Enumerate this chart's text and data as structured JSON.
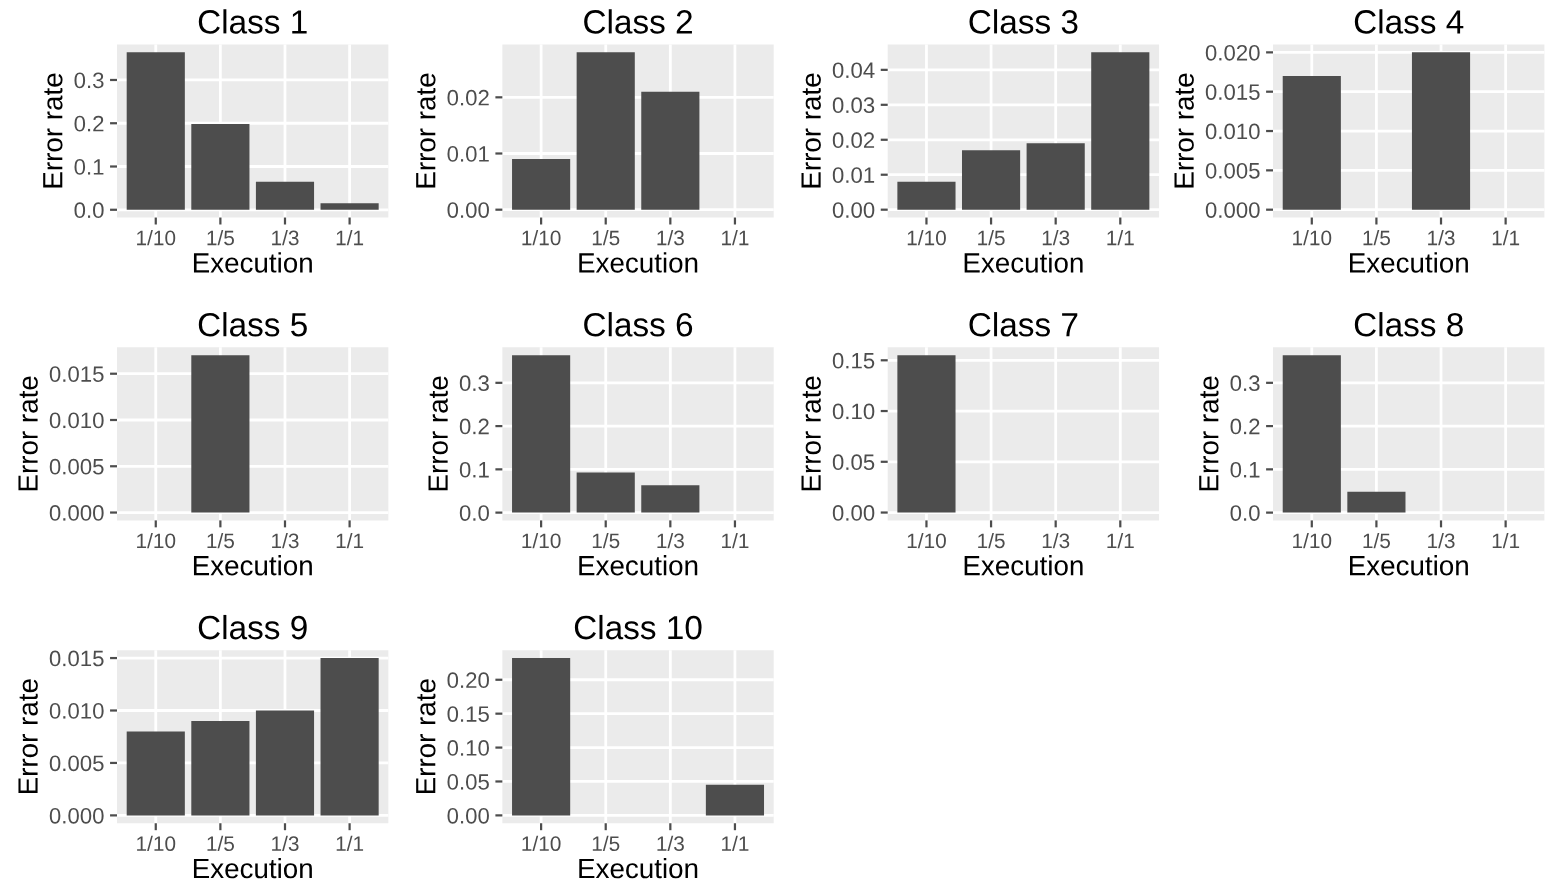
{
  "chart_data": [
    {
      "type": "bar",
      "title": "Class 1",
      "xlabel": "Execution",
      "ylabel": "Error rate",
      "categories": [
        "1/10",
        "1/5",
        "1/3",
        "1/1"
      ],
      "values": [
        0.364,
        0.198,
        0.065,
        0.015
      ],
      "color": "#4d4d4d",
      "ylim": [
        -0.018,
        0.382
      ],
      "yticks": [
        {
          "value": 0,
          "label": "0.0"
        },
        0.1,
        0.2,
        0.3
      ],
      "grid": true
    },
    {
      "type": "bar",
      "title": "Class 2",
      "xlabel": "Execution",
      "ylabel": "Error rate",
      "categories": [
        "1/10",
        "1/5",
        "1/3",
        "1/1"
      ],
      "values": [
        0.009,
        0.028,
        0.021,
        0
      ],
      "color": "#4d4d4d",
      "ylim": [
        -0.0014,
        0.0294
      ],
      "yticks": [
        {
          "value": 0,
          "label": "0.00"
        },
        0.01,
        0.02
      ],
      "grid": true
    },
    {
      "type": "bar",
      "title": "Class 3",
      "xlabel": "Execution",
      "ylabel": "Error rate",
      "categories": [
        "1/10",
        "1/5",
        "1/3",
        "1/1"
      ],
      "values": [
        0.008,
        0.017,
        0.019,
        0.045
      ],
      "color": "#4d4d4d",
      "ylim": [
        -0.00225,
        0.04725
      ],
      "yticks": [
        {
          "value": 0,
          "label": "0.00"
        },
        0.01,
        0.02,
        0.03,
        0.04
      ],
      "grid": true
    },
    {
      "type": "bar",
      "title": "Class 4",
      "xlabel": "Execution",
      "ylabel": "Error rate",
      "categories": [
        "1/10",
        "1/5",
        "1/3",
        "1/1"
      ],
      "values": [
        0.017,
        0,
        0.02,
        0
      ],
      "color": "#4d4d4d",
      "ylim": [
        -0.001,
        0.021
      ],
      "yticks": [
        {
          "value": 0,
          "label": "0.000"
        },
        0.005,
        {
          "value": 0.01,
          "label": "0.010"
        },
        0.015,
        {
          "value": 0.02,
          "label": "0.020"
        }
      ],
      "grid": true
    },
    {
      "type": "bar",
      "title": "Class 5",
      "xlabel": "Execution",
      "ylabel": "Error rate",
      "categories": [
        "1/10",
        "1/5",
        "1/3",
        "1/1"
      ],
      "values": [
        0,
        0.017,
        0,
        0
      ],
      "color": "#4d4d4d",
      "ylim": [
        -0.00085,
        0.01785
      ],
      "yticks": [
        {
          "value": 0,
          "label": "0.000"
        },
        0.005,
        {
          "value": 0.01,
          "label": "0.010"
        },
        0.015
      ],
      "grid": true
    },
    {
      "type": "bar",
      "title": "Class 6",
      "xlabel": "Execution",
      "ylabel": "Error rate",
      "categories": [
        "1/10",
        "1/5",
        "1/3",
        "1/1"
      ],
      "values": [
        0.364,
        0.093,
        0.063,
        0
      ],
      "color": "#4d4d4d",
      "ylim": [
        -0.018,
        0.382
      ],
      "yticks": [
        {
          "value": 0,
          "label": "0.0"
        },
        0.1,
        0.2,
        0.3
      ],
      "grid": true
    },
    {
      "type": "bar",
      "title": "Class 7",
      "xlabel": "Execution",
      "ylabel": "Error rate",
      "categories": [
        "1/10",
        "1/5",
        "1/3",
        "1/1"
      ],
      "values": [
        0.155,
        0,
        0,
        0
      ],
      "color": "#4d4d4d",
      "ylim": [
        -0.00775,
        0.16275
      ],
      "yticks": [
        {
          "value": 0,
          "label": "0.00"
        },
        0.05,
        {
          "value": 0.1,
          "label": "0.10"
        },
        0.15
      ],
      "grid": true
    },
    {
      "type": "bar",
      "title": "Class 8",
      "xlabel": "Execution",
      "ylabel": "Error rate",
      "categories": [
        "1/10",
        "1/5",
        "1/3",
        "1/1"
      ],
      "values": [
        0.364,
        0.048,
        0,
        0
      ],
      "color": "#4d4d4d",
      "ylim": [
        -0.018,
        0.382
      ],
      "yticks": [
        {
          "value": 0,
          "label": "0.0"
        },
        0.1,
        0.2,
        0.3
      ],
      "grid": true
    },
    {
      "type": "bar",
      "title": "Class 9",
      "xlabel": "Execution",
      "ylabel": "Error rate",
      "categories": [
        "1/10",
        "1/5",
        "1/3",
        "1/1"
      ],
      "values": [
        0.008,
        0.009,
        0.01,
        0.015
      ],
      "color": "#4d4d4d",
      "ylim": [
        -0.00075,
        0.01575
      ],
      "yticks": [
        {
          "value": 0,
          "label": "0.000"
        },
        0.005,
        {
          "value": 0.01,
          "label": "0.010"
        },
        0.015
      ],
      "grid": true
    },
    {
      "type": "bar",
      "title": "Class 10",
      "xlabel": "Execution",
      "ylabel": "Error rate",
      "categories": [
        "1/10",
        "1/5",
        "1/3",
        "1/1"
      ],
      "values": [
        0.232,
        0,
        0,
        0.045
      ],
      "color": "#4d4d4d",
      "ylim": [
        -0.0116,
        0.2436
      ],
      "yticks": [
        {
          "value": 0,
          "label": "0.00"
        },
        0.05,
        {
          "value": 0.1,
          "label": "0.10"
        },
        0.15,
        {
          "value": 0.2,
          "label": "0.20"
        }
      ],
      "grid": true
    }
  ]
}
